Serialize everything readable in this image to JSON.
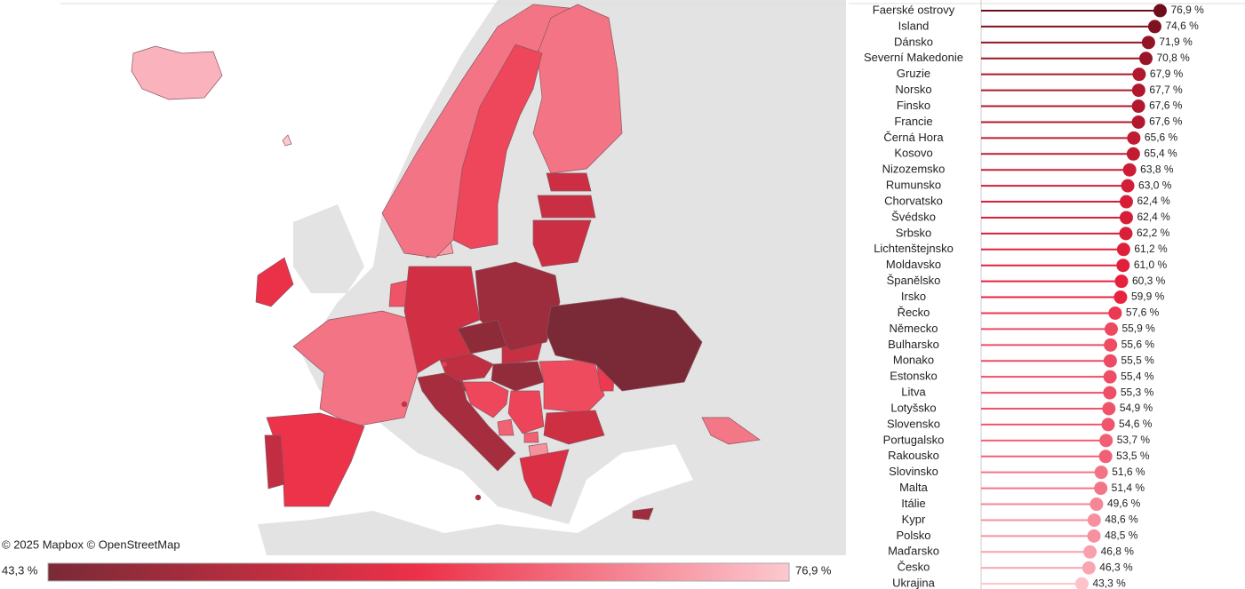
{
  "chart_data": {
    "type": "lollipop",
    "categories": [
      "Faerské ostrovy",
      "Island",
      "Dánsko",
      "Severní Makedonie",
      "Gruzie",
      "Norsko",
      "Finsko",
      "Francie",
      "Černá Hora",
      "Kosovo",
      "Nizozemsko",
      "Rumunsko",
      "Chorvatsko",
      "Švédsko",
      "Srbsko",
      "Lichtenštejnsko",
      "Moldavsko",
      "Španělsko",
      "Irsko",
      "Řecko",
      "Německo",
      "Bulharsko",
      "Monako",
      "Estonsko",
      "Litva",
      "Lotyšsko",
      "Slovensko",
      "Portugalsko",
      "Rakousko",
      "Slovinsko",
      "Malta",
      "Itálie",
      "Kypr",
      "Polsko",
      "Maďarsko",
      "Česko",
      "Ukrajina"
    ],
    "values": [
      76.9,
      74.6,
      71.9,
      70.8,
      67.9,
      67.7,
      67.6,
      67.6,
      65.6,
      65.4,
      63.8,
      63.0,
      62.4,
      62.4,
      62.2,
      61.2,
      61.0,
      60.3,
      59.9,
      57.6,
      55.9,
      55.6,
      55.5,
      55.4,
      55.3,
      54.9,
      54.6,
      53.7,
      53.5,
      51.6,
      51.4,
      49.6,
      48.6,
      48.5,
      46.8,
      46.3,
      43.3
    ],
    "value_labels": [
      "76,9 %",
      "74,6 %",
      "71,9 %",
      "70,8 %",
      "67,9 %",
      "67,7 %",
      "67,6 %",
      "67,6 %",
      "65,6 %",
      "65,4 %",
      "63,8 %",
      "63,0 %",
      "62,4 %",
      "62,4 %",
      "62,2 %",
      "61,2 %",
      "61,0 %",
      "60,3 %",
      "59,9 %",
      "57,6 %",
      "55,9 %",
      "55,6 %",
      "55,5 %",
      "55,4 %",
      "55,3 %",
      "54,9 %",
      "54,6 %",
      "53,7 %",
      "53,5 %",
      "51,6 %",
      "51,4 %",
      "49,6 %",
      "48,6 %",
      "48,5 %",
      "46,8 %",
      "46,3 %",
      "43,3 %"
    ],
    "xlim": [
      0,
      100
    ],
    "colors": [
      "#fcc3cb",
      "#e8213d",
      "#6e0e1b"
    ],
    "map": {
      "attribution": "© 2025 Mapbox  © OpenStreetMap",
      "colorbar": [
        {
          "value": 43.3,
          "label": "43,3 %"
        },
        {
          "value": 76.9,
          "label": "76,9 %"
        }
      ],
      "colors": [
        "#7a2a36",
        "#ec3148",
        "#fcc8cf"
      ]
    }
  }
}
